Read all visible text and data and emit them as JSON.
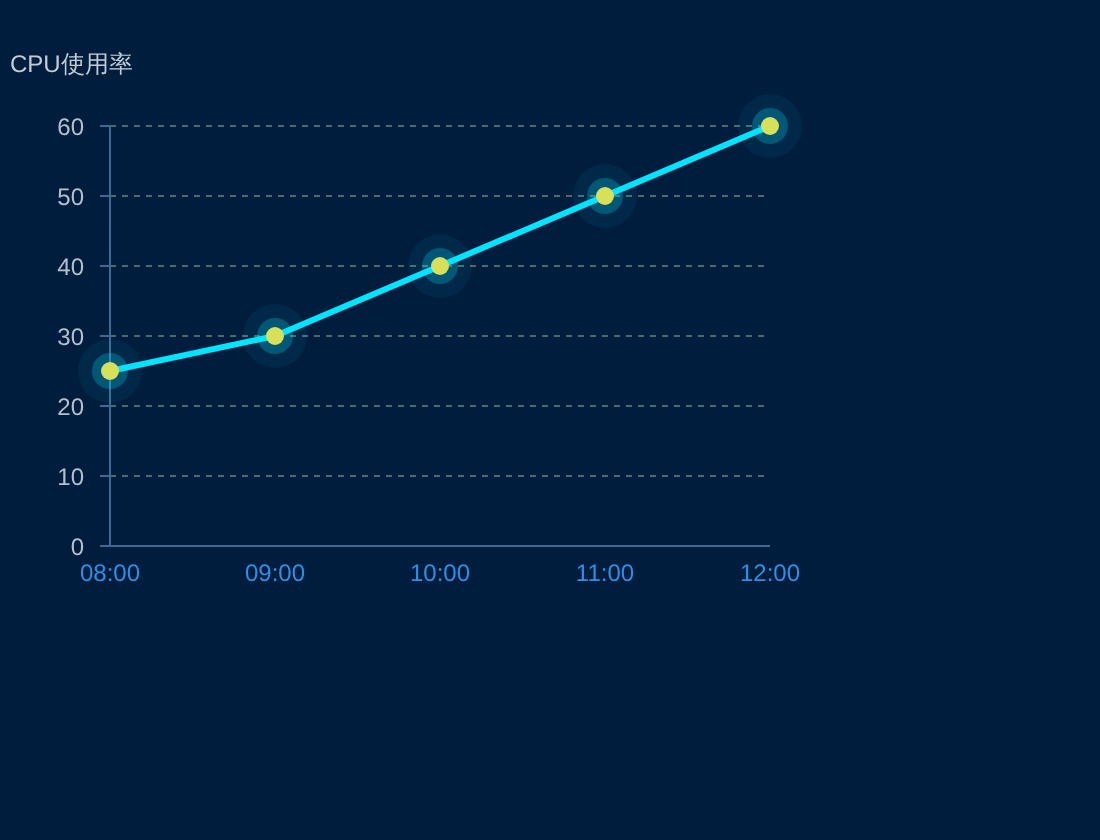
{
  "chart_data": {
    "type": "line",
    "ylabel": "CPU使用率",
    "categories": [
      "08:00",
      "09:00",
      "10:00",
      "11:00",
      "12:00"
    ],
    "series": [
      {
        "color": "#00e5ff",
        "values": [
          25,
          30,
          40,
          50,
          60
        ]
      }
    ],
    "ylim": [
      0,
      60
    ],
    "yticks": [
      0,
      10,
      20,
      30,
      40,
      50,
      60
    ],
    "grid": "y",
    "marker": "circle",
    "line_style": "solid"
  }
}
